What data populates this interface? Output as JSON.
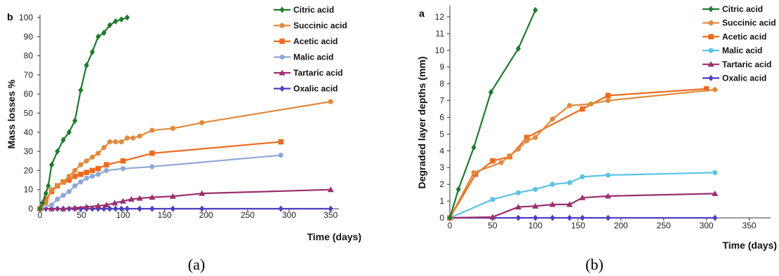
{
  "chart_data": [
    {
      "type": "line",
      "panel_letter": "b",
      "caption": "(a)",
      "ylabel": "Mass losses %",
      "xlabel": "Time (days)",
      "xlim": [
        0,
        360
      ],
      "ylim": [
        0,
        100
      ],
      "xticks": [
        "0",
        "50",
        "100",
        "150",
        "200",
        "250",
        "300",
        "350"
      ],
      "yticks": [
        "0",
        "10",
        "20",
        "30",
        "40",
        "50",
        "60",
        "70",
        "80",
        "90",
        "100"
      ],
      "grid": false,
      "legend_position": "top-right",
      "series": [
        {
          "name": "Citric acid",
          "color": "#1e7a2e",
          "marker": "diamond",
          "x": [
            0,
            3,
            7,
            10,
            14,
            21,
            28,
            35,
            42,
            49,
            56,
            63,
            70,
            77,
            84,
            91,
            98,
            105
          ],
          "y": [
            0,
            3,
            8,
            12,
            23,
            30,
            36,
            40,
            46,
            62,
            75,
            82,
            90,
            92,
            96,
            98,
            99,
            100
          ]
        },
        {
          "name": "Succinic acid",
          "color": "#e08a3c",
          "marker": "circle",
          "x": [
            0,
            7,
            14,
            21,
            28,
            35,
            42,
            49,
            56,
            63,
            70,
            77,
            84,
            91,
            98,
            105,
            112,
            120,
            135,
            160,
            195,
            350
          ],
          "y": [
            0,
            3,
            10,
            12,
            14,
            17,
            20,
            23,
            25,
            27,
            29,
            32,
            35,
            35,
            35,
            37,
            37,
            38,
            41,
            42,
            45,
            56
          ]
        },
        {
          "name": "Acetic acid",
          "color": "#ee6a1f",
          "marker": "square",
          "x": [
            0,
            7,
            14,
            21,
            28,
            35,
            42,
            49,
            56,
            63,
            70,
            80,
            100,
            135,
            290
          ],
          "y": [
            0,
            5,
            9,
            12,
            14,
            15,
            17,
            18,
            19,
            20,
            21,
            23,
            25,
            29,
            35
          ]
        },
        {
          "name": "Malic acid",
          "color": "#8fa7d8",
          "marker": "circle",
          "x": [
            0,
            14,
            21,
            28,
            35,
            42,
            49,
            56,
            63,
            70,
            80,
            100,
            135,
            290
          ],
          "y": [
            0,
            2,
            5,
            7,
            9,
            12,
            14,
            16,
            17,
            18,
            20,
            21,
            22,
            28
          ]
        },
        {
          "name": "Tartaric acid",
          "color": "#9b2f6e",
          "marker": "triangle",
          "x": [
            0,
            14,
            28,
            42,
            56,
            70,
            80,
            90,
            100,
            110,
            120,
            135,
            160,
            195,
            350
          ],
          "y": [
            0,
            0,
            0,
            0.5,
            1,
            1.5,
            2,
            3,
            4,
            5,
            5.5,
            6,
            6.5,
            8,
            10
          ]
        },
        {
          "name": "Oxalic acid",
          "color": "#4b3fbf",
          "marker": "diamond",
          "x": [
            0,
            7,
            14,
            21,
            28,
            35,
            42,
            49,
            56,
            63,
            70,
            77,
            84,
            91,
            98,
            105,
            120,
            135,
            160,
            195,
            290,
            350
          ],
          "y": [
            0,
            0,
            0,
            0,
            0,
            0,
            0,
            0,
            0,
            0,
            0,
            0,
            0,
            0,
            0,
            0,
            0,
            0,
            0,
            0,
            0,
            0
          ]
        }
      ]
    },
    {
      "type": "line",
      "panel_letter": "a",
      "caption": "(b)",
      "ylabel": "Degraded layer depths (mm)",
      "xlabel": "Time (days)",
      "xlim": [
        0,
        375
      ],
      "ylim": [
        0,
        12.5
      ],
      "xticks": [
        "0",
        "50",
        "100",
        "150",
        "200",
        "250",
        "300",
        "350"
      ],
      "yticks": [
        "0",
        "1",
        "2",
        "3",
        "4",
        "5",
        "6",
        "7",
        "8",
        "9",
        "10",
        "11",
        "12"
      ],
      "grid": false,
      "legend_position": "top-right",
      "series": [
        {
          "name": "Citric acid",
          "color": "#1e7a2e",
          "marker": "diamond",
          "x": [
            0,
            10,
            28,
            48,
            80,
            100
          ],
          "y": [
            0,
            1.7,
            4.2,
            7.5,
            10.1,
            12.4
          ]
        },
        {
          "name": "Succinic acid",
          "color": "#e08a3c",
          "marker": "circle",
          "x": [
            0,
            28,
            60,
            70,
            80,
            90,
            100,
            120,
            140,
            165,
            185,
            310
          ],
          "y": [
            0,
            2.7,
            3.3,
            3.7,
            4.1,
            4.6,
            4.8,
            5.9,
            6.7,
            6.8,
            7.0,
            7.65
          ]
        },
        {
          "name": "Acetic acid",
          "color": "#ee6a1f",
          "marker": "square",
          "x": [
            0,
            30,
            50,
            70,
            90,
            155,
            185,
            300
          ],
          "y": [
            0,
            2.6,
            3.4,
            3.65,
            4.8,
            6.5,
            7.3,
            7.7
          ]
        },
        {
          "name": "Malic acid",
          "color": "#5bc3e6",
          "marker": "circle",
          "x": [
            0,
            50,
            80,
            100,
            120,
            140,
            155,
            185,
            310
          ],
          "y": [
            0,
            1.1,
            1.5,
            1.7,
            2.0,
            2.1,
            2.45,
            2.55,
            2.7
          ]
        },
        {
          "name": "Tartaric acid",
          "color": "#9b2f6e",
          "marker": "triangle",
          "x": [
            0,
            50,
            80,
            100,
            120,
            140,
            155,
            185,
            310
          ],
          "y": [
            0,
            0.05,
            0.65,
            0.7,
            0.8,
            0.8,
            1.2,
            1.3,
            1.45
          ]
        },
        {
          "name": "Oxalic acid",
          "color": "#4b3fbf",
          "marker": "diamond",
          "x": [
            0,
            50,
            80,
            100,
            120,
            140,
            155,
            185,
            310
          ],
          "y": [
            0,
            0,
            0,
            0,
            0,
            0,
            0,
            0,
            0
          ]
        }
      ]
    }
  ]
}
